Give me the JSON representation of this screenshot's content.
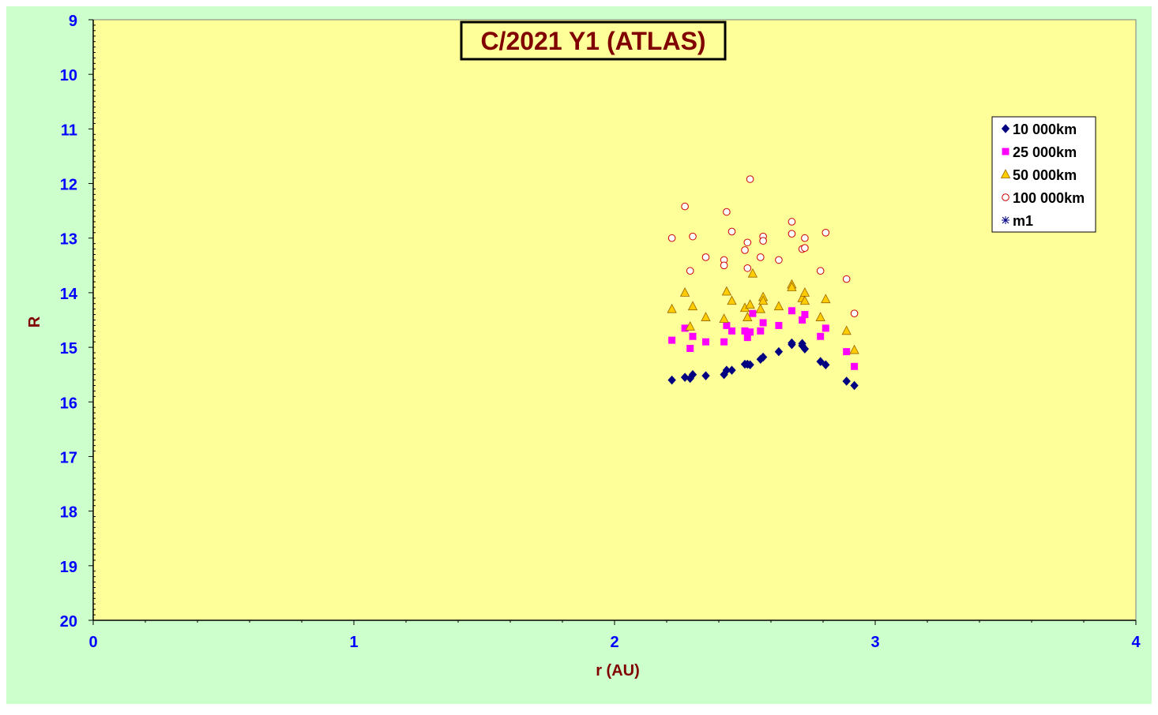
{
  "colors": {
    "outer_background": "#ccffcc",
    "plot_background": "#ffff99",
    "tick_label_color": "#0000ff",
    "axis_title_color": "#800000",
    "title_color": "#800000"
  },
  "chart_data": {
    "type": "scatter",
    "title": "C/2021 Y1 (ATLAS)",
    "xlabel": "r (AU)",
    "ylabel": "R",
    "xlim": [
      0,
      4
    ],
    "ylim": [
      9,
      20
    ],
    "y_reversed": true,
    "x_ticks": [
      "0",
      "1",
      "2",
      "3",
      "4"
    ],
    "y_ticks": [
      "9",
      "10",
      "11",
      "12",
      "13",
      "14",
      "15",
      "16",
      "17",
      "18",
      "19",
      "20"
    ],
    "grid": false,
    "legend_position": "right",
    "series": [
      {
        "name": "10 000km",
        "marker": "diamond",
        "color": "#000080",
        "points": [
          [
            2.22,
            15.6
          ],
          [
            2.27,
            15.55
          ],
          [
            2.29,
            15.57
          ],
          [
            2.3,
            15.5
          ],
          [
            2.35,
            15.52
          ],
          [
            2.42,
            15.5
          ],
          [
            2.43,
            15.42
          ],
          [
            2.45,
            15.42
          ],
          [
            2.5,
            15.31
          ],
          [
            2.51,
            15.31
          ],
          [
            2.52,
            15.32
          ],
          [
            2.56,
            15.22
          ],
          [
            2.57,
            15.18
          ],
          [
            2.63,
            15.08
          ],
          [
            2.68,
            14.95
          ],
          [
            2.68,
            14.92
          ],
          [
            2.72,
            14.97
          ],
          [
            2.72,
            14.93
          ],
          [
            2.73,
            15.03
          ],
          [
            2.79,
            15.26
          ],
          [
            2.81,
            15.32
          ],
          [
            2.89,
            15.62
          ],
          [
            2.92,
            15.7
          ]
        ]
      },
      {
        "name": "25 000km",
        "marker": "square",
        "color": "#ff00ff",
        "points": [
          [
            2.22,
            14.87
          ],
          [
            2.27,
            14.65
          ],
          [
            2.29,
            15.02
          ],
          [
            2.3,
            14.8
          ],
          [
            2.35,
            14.9
          ],
          [
            2.42,
            14.9
          ],
          [
            2.43,
            14.6
          ],
          [
            2.45,
            14.7
          ],
          [
            2.5,
            14.7
          ],
          [
            2.51,
            14.82
          ],
          [
            2.52,
            14.72
          ],
          [
            2.53,
            14.38
          ],
          [
            2.56,
            14.7
          ],
          [
            2.57,
            14.55
          ],
          [
            2.63,
            14.6
          ],
          [
            2.68,
            14.33
          ],
          [
            2.72,
            14.5
          ],
          [
            2.73,
            14.4
          ],
          [
            2.79,
            14.8
          ],
          [
            2.81,
            14.65
          ],
          [
            2.89,
            15.08
          ],
          [
            2.92,
            15.35
          ]
        ]
      },
      {
        "name": "50 000km",
        "marker": "triangle",
        "color": "#ffcc00",
        "points": [
          [
            2.22,
            14.3
          ],
          [
            2.27,
            14.0
          ],
          [
            2.29,
            14.62
          ],
          [
            2.3,
            14.25
          ],
          [
            2.35,
            14.45
          ],
          [
            2.42,
            14.48
          ],
          [
            2.43,
            13.98
          ],
          [
            2.45,
            14.15
          ],
          [
            2.5,
            14.28
          ],
          [
            2.51,
            14.45
          ],
          [
            2.52,
            14.22
          ],
          [
            2.53,
            13.65
          ],
          [
            2.56,
            14.3
          ],
          [
            2.57,
            14.08
          ],
          [
            2.57,
            14.15
          ],
          [
            2.63,
            14.25
          ],
          [
            2.68,
            13.85
          ],
          [
            2.68,
            13.9
          ],
          [
            2.72,
            14.1
          ],
          [
            2.73,
            14.0
          ],
          [
            2.73,
            14.15
          ],
          [
            2.79,
            14.45
          ],
          [
            2.81,
            14.12
          ],
          [
            2.89,
            14.7
          ],
          [
            2.92,
            15.05
          ]
        ]
      },
      {
        "name": "100 000km",
        "marker": "circle",
        "color": "#cc0000",
        "points": [
          [
            2.22,
            13.0
          ],
          [
            2.27,
            12.42
          ],
          [
            2.29,
            13.6
          ],
          [
            2.3,
            12.97
          ],
          [
            2.35,
            13.35
          ],
          [
            2.42,
            13.4
          ],
          [
            2.42,
            13.5
          ],
          [
            2.43,
            12.52
          ],
          [
            2.45,
            12.88
          ],
          [
            2.5,
            13.22
          ],
          [
            2.51,
            13.08
          ],
          [
            2.51,
            13.55
          ],
          [
            2.52,
            11.92
          ],
          [
            2.56,
            13.35
          ],
          [
            2.57,
            12.97
          ],
          [
            2.57,
            13.05
          ],
          [
            2.63,
            13.4
          ],
          [
            2.68,
            12.7
          ],
          [
            2.68,
            12.92
          ],
          [
            2.72,
            13.2
          ],
          [
            2.73,
            13.0
          ],
          [
            2.73,
            13.18
          ],
          [
            2.79,
            13.6
          ],
          [
            2.81,
            12.9
          ],
          [
            2.89,
            13.75
          ],
          [
            2.92,
            14.38
          ]
        ]
      },
      {
        "name": "m1",
        "marker": "star",
        "color": "#000080",
        "points": []
      }
    ]
  }
}
